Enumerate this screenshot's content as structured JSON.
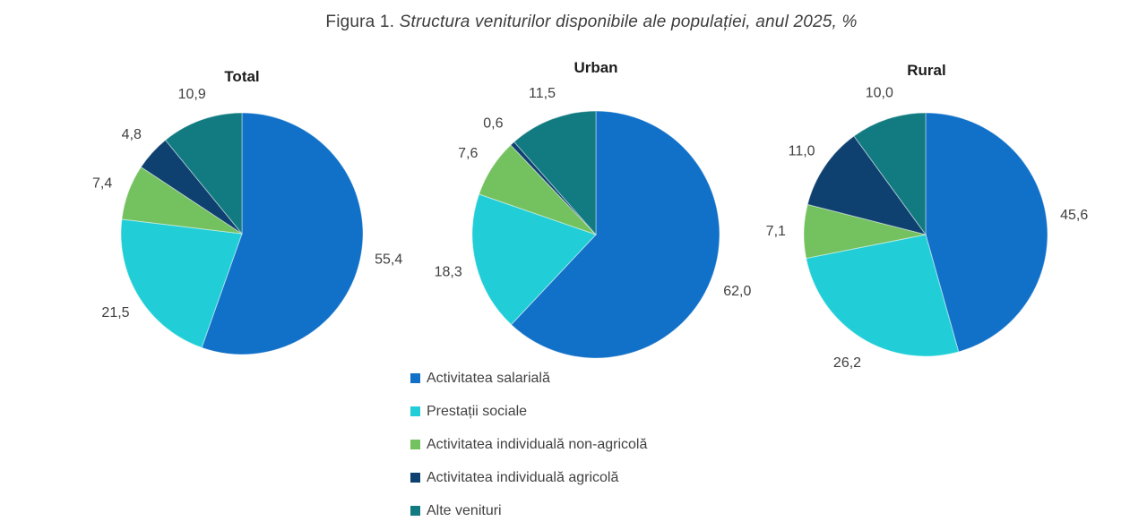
{
  "figure_title": {
    "prefix": "Figura 1.",
    "italic": "Structura veniturilor disponibile ale populației, anul 2025, %"
  },
  "colors": {
    "salariala": "#1170C8",
    "prestatii": "#21CED7",
    "non_agricola": "#74C15F",
    "agricola": "#0E4070",
    "alte": "#127B81"
  },
  "legend": {
    "position": "bottom-center",
    "items": [
      {
        "label": "Activitatea salarială",
        "color": "salariala"
      },
      {
        "label": "Prestații sociale",
        "color": "prestatii"
      },
      {
        "label": "Activitatea individuală non-agricolă",
        "color": "non_agricola"
      },
      {
        "label": "Activitatea individuală agricolă",
        "color": "agricola"
      },
      {
        "label": "Alte venituri",
        "color": "alte"
      }
    ]
  },
  "chart_data": [
    {
      "type": "pie",
      "title": "Total",
      "units": "%",
      "start_angle_deg": 0,
      "direction": "clockwise",
      "slices": [
        {
          "name": "Activitatea salarială",
          "value": 55.4,
          "label": "55,4",
          "color": "salariala"
        },
        {
          "name": "Prestații sociale",
          "value": 21.5,
          "label": "21,5",
          "color": "prestatii"
        },
        {
          "name": "Activitatea individuală non-agricolă",
          "value": 7.4,
          "label": "7,4",
          "color": "non_agricola"
        },
        {
          "name": "Activitatea individuală agricolă",
          "value": 4.8,
          "label": "4,8",
          "color": "agricola"
        },
        {
          "name": "Alte venituri",
          "value": 10.9,
          "label": "10,9",
          "color": "alte"
        }
      ]
    },
    {
      "type": "pie",
      "title": "Urban",
      "units": "%",
      "start_angle_deg": 0,
      "direction": "clockwise",
      "slices": [
        {
          "name": "Activitatea salarială",
          "value": 62.0,
          "label": "62,0",
          "color": "salariala"
        },
        {
          "name": "Prestații sociale",
          "value": 18.3,
          "label": "18,3",
          "color": "prestatii"
        },
        {
          "name": "Activitatea individuală non-agricolă",
          "value": 7.6,
          "label": "7,6",
          "color": "non_agricola"
        },
        {
          "name": "Activitatea individuală agricolă",
          "value": 0.6,
          "label": "0,6",
          "color": "agricola"
        },
        {
          "name": "Alte venituri",
          "value": 11.5,
          "label": "11,5",
          "color": "alte"
        }
      ]
    },
    {
      "type": "pie",
      "title": "Rural",
      "units": "%",
      "start_angle_deg": 0,
      "direction": "clockwise",
      "slices": [
        {
          "name": "Activitatea salarială",
          "value": 45.6,
          "label": "45,6",
          "color": "salariala"
        },
        {
          "name": "Prestații sociale",
          "value": 26.2,
          "label": "26,2",
          "color": "prestatii"
        },
        {
          "name": "Activitatea individuală non-agricolă",
          "value": 7.1,
          "label": "7,1",
          "color": "non_agricola"
        },
        {
          "name": "Activitatea individuală agricolă",
          "value": 11.0,
          "label": "11,0",
          "color": "agricola"
        },
        {
          "name": "Alte venituri",
          "value": 10.0,
          "label": "10,0",
          "color": "alte"
        }
      ]
    }
  ]
}
